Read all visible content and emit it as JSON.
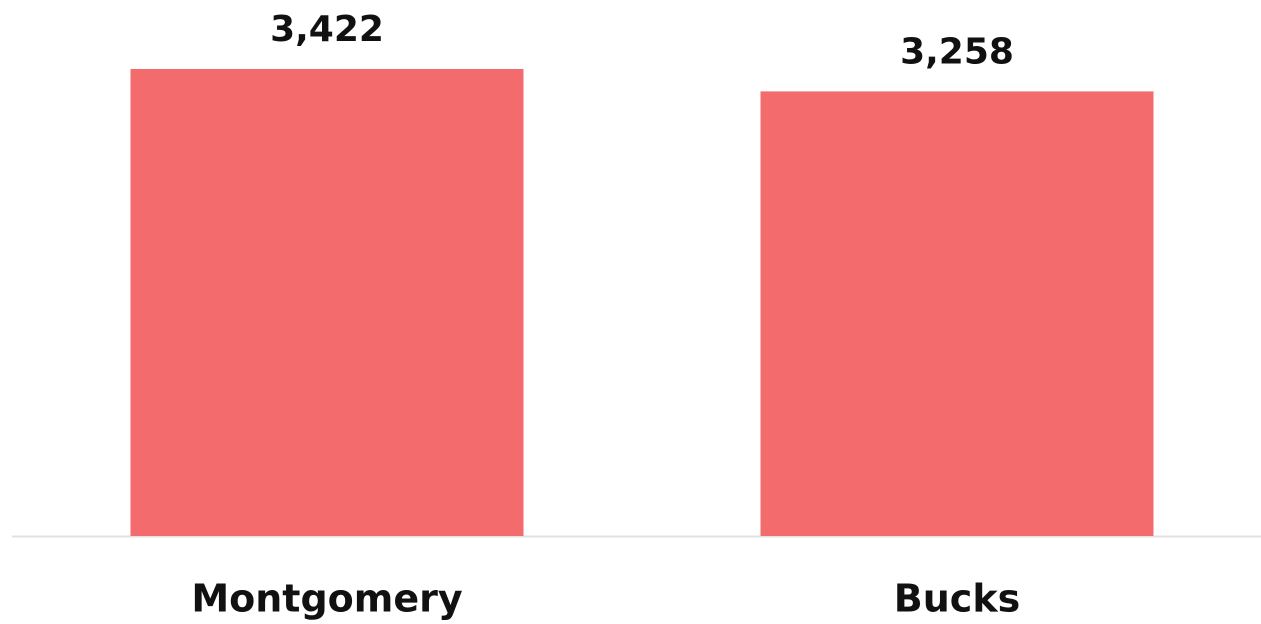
{
  "chart_data": {
    "type": "bar",
    "categories": [
      "Montgomery",
      "Bucks"
    ],
    "values": [
      3422,
      3258
    ],
    "value_labels": [
      "3,422",
      "3,258"
    ],
    "color": "#f46b6e"
  }
}
